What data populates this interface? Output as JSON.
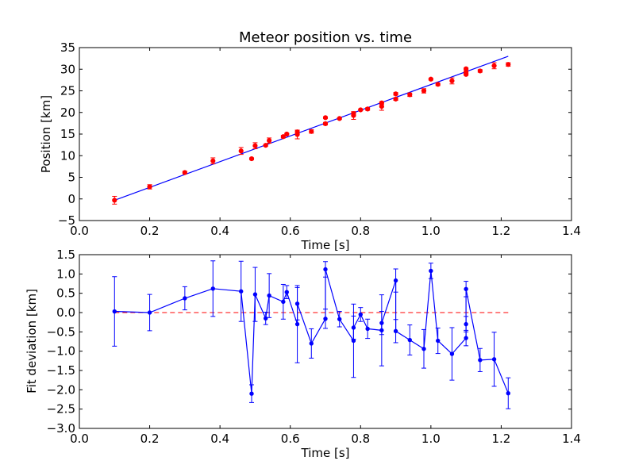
{
  "chart_data": [
    {
      "type": "scatter",
      "title": "Meteor position vs. time",
      "xlabel": "Time [s]",
      "ylabel": "Position [km]",
      "xlim": [
        0.0,
        1.4
      ],
      "ylim": [
        -5,
        35
      ],
      "xticks": [
        "0.0",
        "0.2",
        "0.4",
        "0.6",
        "0.8",
        "1.0",
        "1.2",
        "1.4"
      ],
      "yticks": [
        "−5",
        "0",
        "5",
        "10",
        "15",
        "20",
        "25",
        "30",
        "35"
      ],
      "xtick_values": [
        0.0,
        0.2,
        0.4,
        0.6,
        0.8,
        1.0,
        1.2,
        1.4
      ],
      "ytick_values": [
        -5,
        0,
        5,
        10,
        15,
        20,
        25,
        30,
        35
      ],
      "grid": false,
      "colors": {
        "points": "#ff0000",
        "fit_line": "#0000ff"
      },
      "fit_line": {
        "x": [
          0.1,
          1.22
        ],
        "y": [
          -0.3,
          33.0
        ]
      },
      "series": [
        {
          "x": [
            0.1,
            0.2,
            0.3,
            0.38,
            0.46,
            0.49,
            0.5,
            0.53,
            0.54,
            0.58,
            0.59,
            0.62,
            0.62,
            0.66,
            0.7,
            0.7,
            0.74,
            0.78,
            0.78,
            0.8,
            0.82,
            0.86,
            0.86,
            0.9,
            0.9,
            0.94,
            0.98,
            1.0,
            1.02,
            1.06,
            1.1,
            1.1,
            1.1,
            1.14,
            1.18,
            1.22
          ],
          "y": [
            -0.3,
            2.8,
            6.1,
            8.8,
            11.1,
            9.3,
            12.3,
            12.4,
            13.5,
            14.4,
            15.0,
            14.9,
            15.5,
            15.6,
            17.4,
            18.8,
            18.6,
            19.3,
            19.7,
            20.6,
            20.8,
            21.4,
            22.2,
            23.1,
            24.3,
            24.1,
            25.0,
            27.7,
            26.5,
            27.3,
            28.8,
            29.3,
            30.1,
            29.6,
            30.8,
            31.1
          ],
          "yerr": [
            0.9,
            0.5,
            0.3,
            0.7,
            0.8,
            0.2,
            0.7,
            0.2,
            0.6,
            0.3,
            0.2,
            1.0,
            0.4,
            0.4,
            0.3,
            0.2,
            0.2,
            0.9,
            0.3,
            0.2,
            0.3,
            0.9,
            0.3,
            0.3,
            0.3,
            0.4,
            0.5,
            0.2,
            0.3,
            0.7,
            0.2,
            0.3,
            0.2,
            0.3,
            0.7,
            0.4
          ]
        }
      ]
    },
    {
      "type": "line",
      "xlabel": "Time [s]",
      "ylabel": "Fit deviation [km]",
      "xlim": [
        0.0,
        1.4
      ],
      "ylim": [
        -3.0,
        1.5
      ],
      "xticks": [
        "0.0",
        "0.2",
        "0.4",
        "0.6",
        "0.8",
        "1.0",
        "1.2",
        "1.4"
      ],
      "yticks": [
        "−3.0",
        "−2.5",
        "−2.0",
        "−1.5",
        "−1.0",
        "−0.5",
        "0.0",
        "0.5",
        "1.0",
        "1.5"
      ],
      "xtick_values": [
        0.0,
        0.2,
        0.4,
        0.6,
        0.8,
        1.0,
        1.2,
        1.4
      ],
      "ytick_values": [
        -3.0,
        -2.5,
        -2.0,
        -1.5,
        -1.0,
        -0.5,
        0.0,
        0.5,
        1.0,
        1.5
      ],
      "grid": false,
      "colors": {
        "series": "#0000ff",
        "zero_line": "#ff0000"
      },
      "zero_line": {
        "x": [
          0.1,
          1.22
        ],
        "y": [
          0.0,
          0.0
        ]
      },
      "series": [
        {
          "x": [
            0.1,
            0.2,
            0.3,
            0.38,
            0.46,
            0.49,
            0.5,
            0.53,
            0.54,
            0.58,
            0.59,
            0.62,
            0.62,
            0.66,
            0.7,
            0.7,
            0.74,
            0.78,
            0.78,
            0.8,
            0.82,
            0.86,
            0.86,
            0.9,
            0.9,
            0.94,
            0.98,
            1.0,
            1.02,
            1.06,
            1.1,
            1.1,
            1.1,
            1.14,
            1.18,
            1.22
          ],
          "y": [
            0.03,
            0.0,
            0.37,
            0.62,
            0.55,
            -2.1,
            0.47,
            -0.15,
            0.44,
            0.28,
            0.53,
            -0.3,
            0.23,
            -0.8,
            -0.16,
            1.12,
            -0.17,
            -0.73,
            -0.39,
            -0.05,
            -0.42,
            -0.46,
            -0.27,
            0.83,
            -0.48,
            -0.71,
            -0.94,
            1.08,
            -0.73,
            -1.07,
            -0.66,
            -0.3,
            0.61,
            -1.23,
            -1.21,
            -2.09
          ],
          "yerr": [
            0.9,
            0.47,
            0.3,
            0.72,
            0.78,
            0.23,
            0.7,
            0.16,
            0.57,
            0.45,
            0.17,
            1.0,
            0.42,
            0.38,
            0.25,
            0.2,
            0.2,
            0.95,
            0.3,
            0.18,
            0.25,
            0.92,
            0.3,
            0.3,
            0.3,
            0.39,
            0.5,
            0.2,
            0.33,
            0.68,
            0.2,
            0.2,
            0.2,
            0.3,
            0.7,
            0.4
          ]
        }
      ]
    }
  ]
}
